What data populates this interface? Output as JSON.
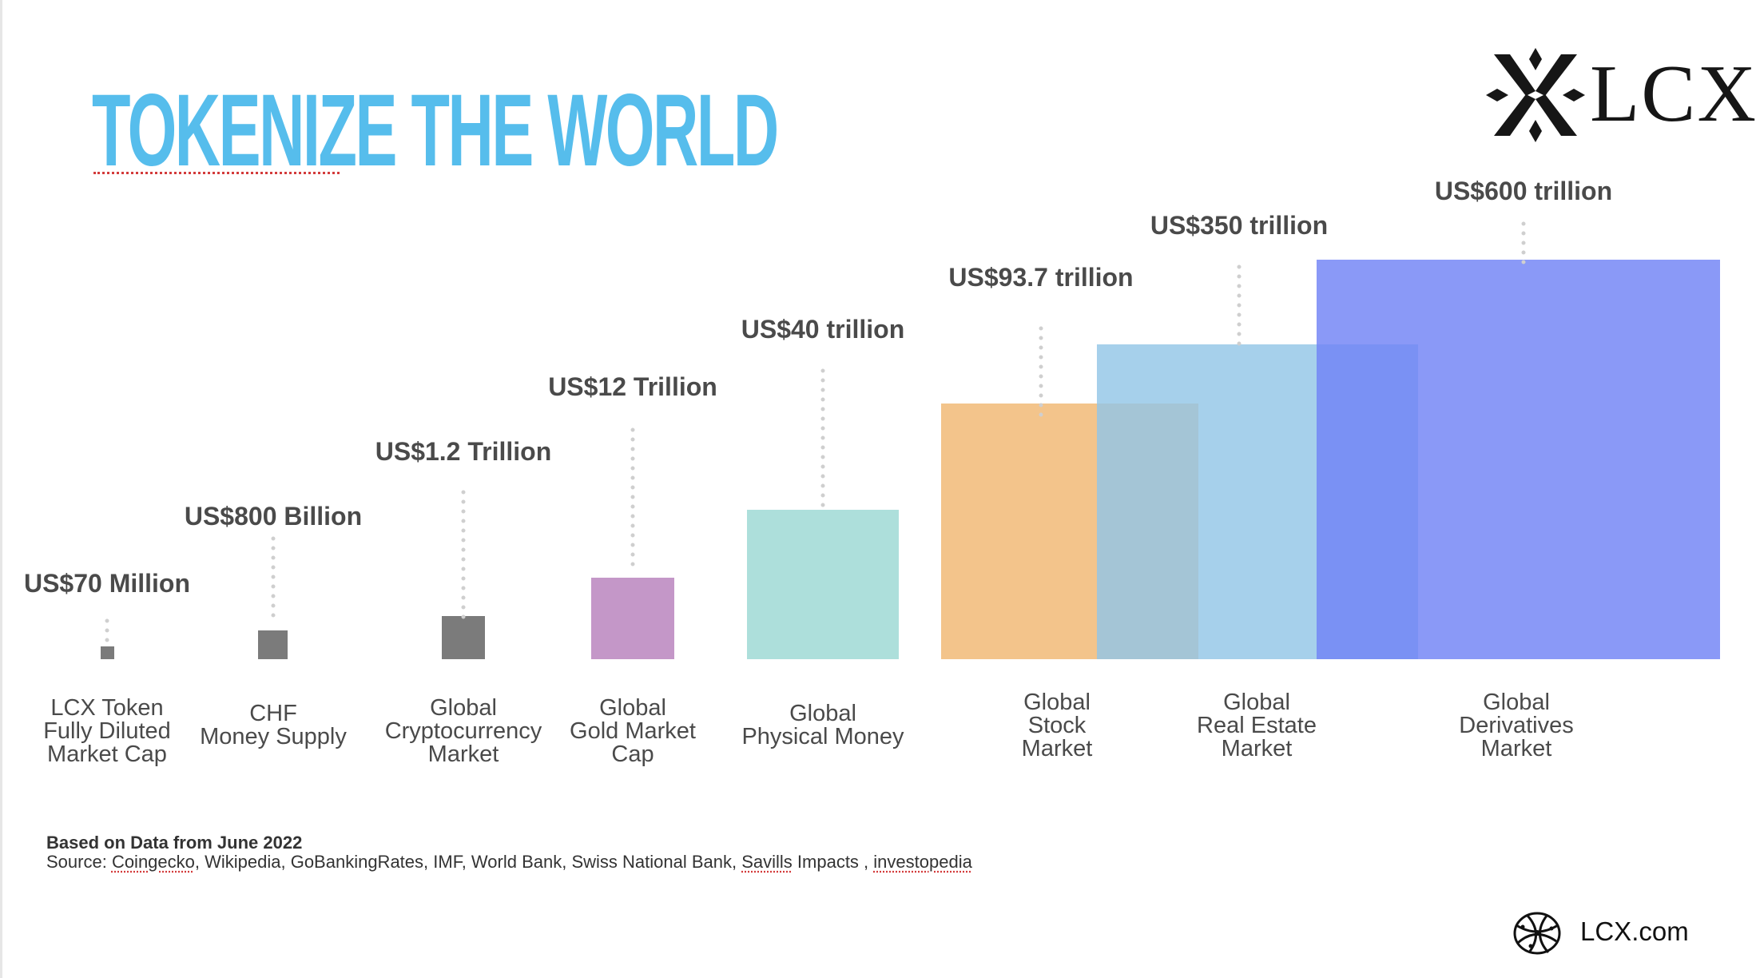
{
  "header": {
    "title": "TOKENIZE THE WORLD",
    "logo_text": "LCX"
  },
  "chart_data": {
    "type": "bar",
    "title": "TOKENIZE THE WORLD",
    "categories": [
      [
        "LCX Token",
        "Fully Diluted",
        "Market Cap"
      ],
      [
        "CHF",
        "Money Supply"
      ],
      [
        "Global",
        "Cryptocurrency",
        "Market"
      ],
      [
        "Global",
        "Gold Market",
        "Cap"
      ],
      [
        "Global",
        "Physical Money"
      ],
      [
        "Global",
        "Stock",
        "Market"
      ],
      [
        "Global",
        "Real Estate",
        "Market"
      ],
      [
        "Global",
        "Derivatives",
        "Market"
      ]
    ],
    "value_labels": [
      "US$70 Million",
      "US$800 Billion",
      "US$1.2 Trillion",
      "US$12 Trillion",
      "US$40 trillion",
      "US$93.7 trillion",
      "US$350 trillion",
      "US$600 trillion"
    ],
    "values_usd": [
      70000000,
      800000000000,
      1200000000000,
      12000000000000,
      40000000000000,
      93700000000000,
      350000000000000,
      600000000000000
    ],
    "colors": [
      "#7b7b7b",
      "#7b7b7b",
      "#7b7b7b",
      "#c497c8",
      "#addfdb",
      "#f3c48b",
      "#93c6e6",
      "#7083f5"
    ],
    "opacity": [
      1,
      1,
      1,
      1,
      1,
      1,
      0.82,
      0.82
    ],
    "grid": false,
    "legend": "none"
  },
  "footer": {
    "note": "Based on Data from June 2022",
    "source_prefix": "Source: ",
    "source_coingecko": "Coingecko",
    "source_middle": ", Wikipedia, GoBankingRates, IMF, World Bank, Swiss National Bank, ",
    "source_savills": "Savills",
    "source_impacts": " Impacts , ",
    "source_investopedia": "investopedia",
    "link": "LCX.com"
  },
  "icons": {
    "logo": "lcx-x-mark-icon",
    "footer": "globe-icon"
  }
}
